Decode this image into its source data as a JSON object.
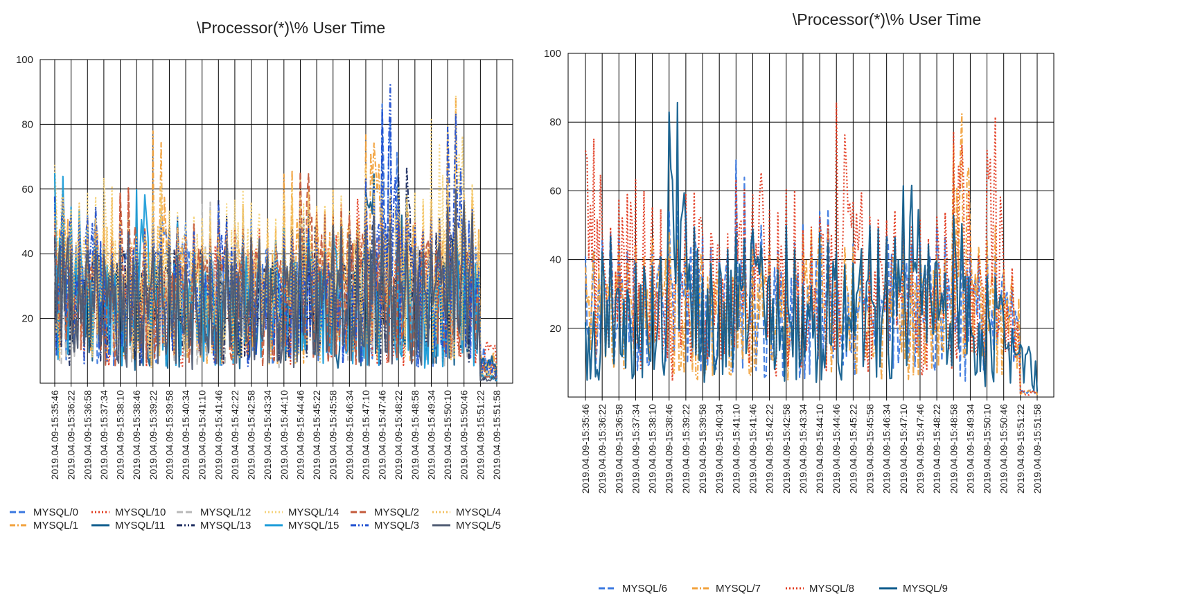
{
  "chart_data": [
    {
      "type": "line",
      "title": "\\Processor(*)\\% User Time",
      "xlabel": "",
      "ylabel": "",
      "ylim": [
        0,
        100
      ],
      "yticks": [
        "20",
        "40",
        "60",
        "80",
        "100"
      ],
      "grid": true,
      "legend_position": "bottom",
      "x": [
        "2019.04.09-15:35:46",
        "2019.04.09-15:36:22",
        "2019.04.09-15:36:58",
        "2019.04.09-15:37:34",
        "2019.04.09-15:38:10",
        "2019.04.09-15:38:46",
        "2019.04.09-15:39:22",
        "2019.04.09-15:39:58",
        "2019.04.09-15:40:34",
        "2019.04.09-15:41:10",
        "2019.04.09-15:41:46",
        "2019.04.09-15:42:22",
        "2019.04.09-15:42:58",
        "2019.04.09-15:43:34",
        "2019.04.09-15:44:10",
        "2019.04.09-15:44:46",
        "2019.04.09-15:45:22",
        "2019.04.09-15:45:58",
        "2019.04.09-15:46:34",
        "2019.04.09-15:47:10",
        "2019.04.09-15:47:46",
        "2019.04.09-15:48:22",
        "2019.04.09-15:48:58",
        "2019.04.09-15:49:34",
        "2019.04.09-15:50:10",
        "2019.04.09-15:50:46",
        "2019.04.09-15:51:22",
        "2019.04.09-15:51:58"
      ],
      "series": [
        {
          "name": "MYSQL/0",
          "color": "#3b78e0",
          "dash": "dashed",
          "peaks": [
            61,
            52,
            58,
            46,
            49,
            40,
            60,
            55,
            50,
            44,
            47,
            42,
            51,
            45,
            46,
            50,
            44,
            52,
            46,
            49,
            95,
            50,
            48,
            46,
            48,
            54,
            12,
            2
          ]
        },
        {
          "name": "MYSQL/1",
          "color": "#f2a23c",
          "dash": "dashdot",
          "peaks": [
            64,
            50,
            56,
            48,
            44,
            52,
            78,
            50,
            52,
            46,
            48,
            52,
            46,
            50,
            69,
            60,
            55,
            58,
            52,
            84,
            56,
            62,
            50,
            52,
            90,
            60,
            10,
            2
          ]
        },
        {
          "name": "MYSQL/10",
          "color": "#e23a1e",
          "dash": "dotted",
          "peaks": [
            48,
            44,
            46,
            44,
            62,
            42,
            48,
            44,
            40,
            50,
            42,
            48,
            50,
            46,
            48,
            52,
            50,
            56,
            58,
            48,
            54,
            50,
            52,
            48,
            56,
            56,
            14,
            2
          ]
        },
        {
          "name": "MYSQL/11",
          "color": "#0d5b8c",
          "dash": "solid",
          "peaks": [
            42,
            46,
            40,
            44,
            38,
            46,
            44,
            42,
            40,
            38,
            44,
            40,
            42,
            44,
            46,
            48,
            44,
            46,
            48,
            67,
            52,
            62,
            46,
            50,
            54,
            48,
            9,
            2
          ]
        },
        {
          "name": "MYSQL/12",
          "color": "#b8b8b8",
          "dash": "dashed",
          "peaks": [
            40,
            42,
            38,
            44,
            40,
            42,
            44,
            40,
            42,
            56,
            48,
            54,
            44,
            40,
            42,
            48,
            44,
            50,
            46,
            48,
            44,
            46,
            50,
            42,
            46,
            48,
            4,
            1
          ]
        },
        {
          "name": "MYSQL/13",
          "color": "#1a2a5e",
          "dash": "dashdotdot",
          "peaks": [
            46,
            44,
            48,
            44,
            52,
            46,
            48,
            55,
            50,
            44,
            58,
            46,
            48,
            44,
            50,
            62,
            52,
            56,
            54,
            58,
            60,
            69,
            52,
            56,
            60,
            56,
            3,
            1
          ]
        },
        {
          "name": "MYSQL/14",
          "color": "#f5d27a",
          "dash": "dotted",
          "peaks": [
            69,
            56,
            60,
            69,
            56,
            52,
            62,
            60,
            58,
            54,
            58,
            60,
            56,
            52,
            62,
            68,
            60,
            58,
            56,
            68,
            66,
            62,
            60,
            82,
            90,
            62,
            6,
            6
          ]
        },
        {
          "name": "MYSQL/15",
          "color": "#199bd8",
          "dash": "solid",
          "peaks": [
            66,
            58,
            48,
            44,
            46,
            62,
            48,
            50,
            46,
            44,
            42,
            46,
            44,
            46,
            48,
            50,
            46,
            52,
            48,
            50,
            46,
            48,
            44,
            46,
            50,
            44,
            3,
            1
          ]
        },
        {
          "name": "MYSQL/2",
          "color": "#c45a3b",
          "dash": "dashed",
          "peaks": [
            50,
            46,
            52,
            44,
            62,
            48,
            44,
            50,
            52,
            46,
            50,
            48,
            50,
            46,
            50,
            69,
            56,
            58,
            56,
            56,
            58,
            54,
            52,
            56,
            58,
            54,
            6,
            1
          ]
        },
        {
          "name": "MYSQL/3",
          "color": "#1f4fd0",
          "dash": "dashdotdot",
          "peaks": [
            58,
            56,
            59,
            44,
            50,
            52,
            54,
            50,
            48,
            42,
            58,
            46,
            44,
            42,
            48,
            50,
            46,
            44,
            48,
            67,
            95,
            58,
            50,
            54,
            92,
            60,
            8,
            2
          ]
        },
        {
          "name": "MYSQL/4",
          "color": "#f3c060",
          "dash": "dotted",
          "peaks": [
            62,
            58,
            56,
            62,
            50,
            48,
            58,
            54,
            50,
            52,
            50,
            56,
            48,
            52,
            58,
            60,
            56,
            60,
            54,
            62,
            58,
            60,
            56,
            58,
            64,
            62,
            5,
            5
          ]
        },
        {
          "name": "MYSQL/5",
          "color": "#4e5a72",
          "dash": "solid",
          "peaks": [
            53,
            44,
            46,
            40,
            48,
            42,
            44,
            46,
            42,
            40,
            44,
            42,
            46,
            40,
            44,
            48,
            46,
            50,
            48,
            52,
            50,
            48,
            46,
            50,
            60,
            59,
            2,
            2
          ]
        }
      ]
    },
    {
      "type": "line",
      "title": "\\Processor(*)\\% User Time",
      "xlabel": "",
      "ylabel": "",
      "ylim": [
        0,
        100
      ],
      "yticks": [
        "20",
        "40",
        "60",
        "80",
        "100"
      ],
      "grid": true,
      "legend_position": "bottom",
      "x": [
        "2019.04.09-15:35:46",
        "2019.04.09-15:36:22",
        "2019.04.09-15:36:58",
        "2019.04.09-15:37:34",
        "2019.04.09-15:38:10",
        "2019.04.09-15:38:46",
        "2019.04.09-15:39:22",
        "2019.04.09-15:39:58",
        "2019.04.09-15:40:34",
        "2019.04.09-15:41:10",
        "2019.04.09-15:41:46",
        "2019.04.09-15:42:22",
        "2019.04.09-15:42:58",
        "2019.04.09-15:43:34",
        "2019.04.09-15:44:10",
        "2019.04.09-15:44:46",
        "2019.04.09-15:45:22",
        "2019.04.09-15:45:58",
        "2019.04.09-15:46:34",
        "2019.04.09-15:47:10",
        "2019.04.09-15:47:46",
        "2019.04.09-15:48:22",
        "2019.04.09-15:48:58",
        "2019.04.09-15:49:34",
        "2019.04.09-15:50:10",
        "2019.04.09-15:50:46",
        "2019.04.09-15:51:22",
        "2019.04.09-15:51:58"
      ],
      "series": [
        {
          "name": "MYSQL/6",
          "color": "#3b78e0",
          "dash": "dashed",
          "peaks": [
            48,
            50,
            47,
            44,
            46,
            55,
            56,
            47,
            46,
            72,
            52,
            46,
            50,
            53,
            56,
            40,
            46,
            48,
            52,
            46,
            48,
            50,
            46,
            44,
            47,
            37,
            2,
            1
          ]
        },
        {
          "name": "MYSQL/7",
          "color": "#f2a23c",
          "dash": "dashdot",
          "peaks": [
            44,
            46,
            44,
            46,
            48,
            52,
            50,
            44,
            42,
            46,
            48,
            44,
            46,
            50,
            56,
            44,
            44,
            46,
            48,
            46,
            44,
            46,
            86,
            48,
            50,
            38,
            2,
            1
          ]
        },
        {
          "name": "MYSQL/8",
          "color": "#e23a1e",
          "dash": "dotted",
          "peaks": [
            83,
            53,
            67,
            67,
            56,
            46,
            69,
            56,
            50,
            69,
            69,
            58,
            62,
            52,
            56,
            88,
            66,
            60,
            59,
            56,
            52,
            56,
            86,
            46,
            84,
            38,
            2,
            2
          ]
        },
        {
          "name": "MYSQL/9",
          "color": "#0d5b8c",
          "dash": "solid",
          "peaks": [
            25,
            47,
            36,
            42,
            44,
            86,
            53,
            40,
            44,
            53,
            51,
            40,
            50,
            35,
            48,
            43,
            44,
            50,
            50,
            66,
            46,
            40,
            56,
            24,
            37,
            22,
            17,
            2
          ]
        }
      ]
    }
  ]
}
